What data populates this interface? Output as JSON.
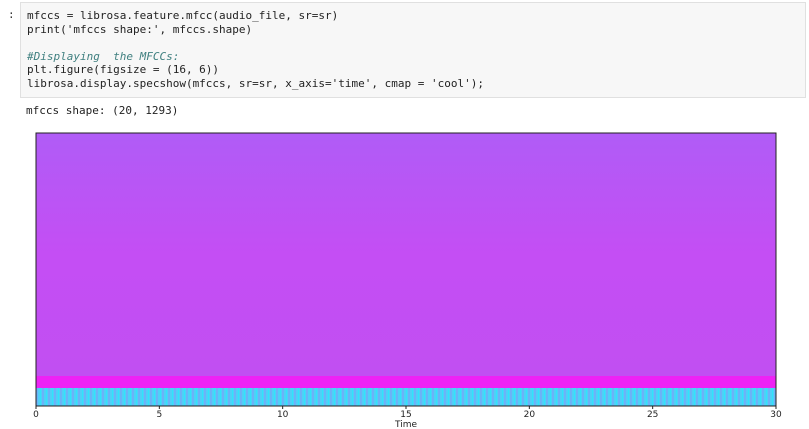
{
  "prompt": ":",
  "code": {
    "lines": [
      "mfccs = librosa.feature.mfcc(audio_file, sr=sr)",
      "print('mfccs shape:', mfccs.shape)",
      "",
      "#Displaying  the MFCCs:",
      "plt.figure(figsize = (16, 6))",
      "librosa.display.specshow(mfccs, sr=sr, x_axis='time', cmap = 'cool');"
    ]
  },
  "output": "mfccs shape: (20, 1293)",
  "chart_data": {
    "type": "heatmap",
    "xlabel": "Time",
    "xlim": [
      0,
      30
    ],
    "xticks": [
      0,
      5,
      10,
      15,
      20,
      25,
      30
    ]
  }
}
